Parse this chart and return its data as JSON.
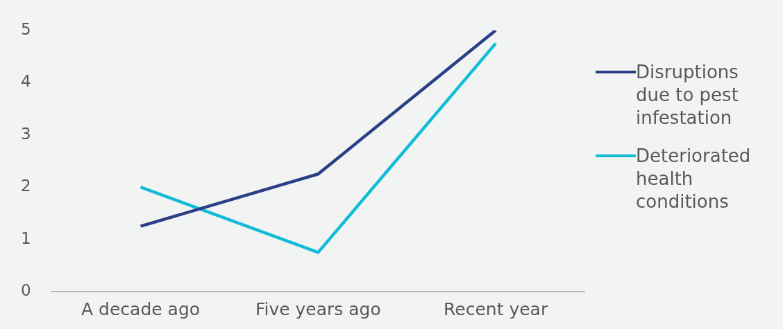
{
  "chart_data": {
    "type": "line",
    "categories": [
      "A decade ago",
      "Five years ago",
      "Recent year"
    ],
    "series": [
      {
        "name": "Disruptions due to pest infestation",
        "color": "#2b3f86",
        "values": [
          1.25,
          2.25,
          5
        ]
      },
      {
        "name": "Deteriorated health conditions",
        "color": "#12bcd9",
        "values": [
          2,
          0.75,
          4.75
        ]
      }
    ],
    "ylim": [
      0,
      5
    ],
    "yticks": [
      0,
      1,
      2,
      3,
      4,
      5
    ],
    "grid": false,
    "legend": "right",
    "marker": "none",
    "line_style": "solid"
  }
}
